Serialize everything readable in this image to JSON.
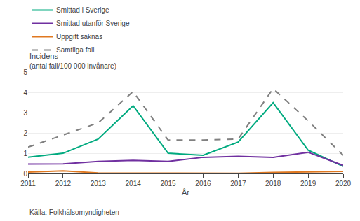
{
  "chart_data": {
    "type": "line",
    "xlabel": "År",
    "ylabel": "Incidens",
    "annotations": [
      "(antal fall/100 000 invånare)",
      "Källa: Folkhälsomyndigheten"
    ],
    "x": [
      2011,
      2012,
      2013,
      2014,
      2015,
      2016,
      2017,
      2018,
      2019,
      2020
    ],
    "series": [
      {
        "name": "Smittad i Sverige",
        "color": "#00aa7f",
        "line_style": "solid",
        "values": [
          0.8,
          1.0,
          1.7,
          3.35,
          1.0,
          0.9,
          1.55,
          3.5,
          1.15,
          0.35
        ]
      },
      {
        "name": "Smittad utanför Sverige",
        "color": "#7030a0",
        "line_style": "solid",
        "values": [
          0.47,
          0.48,
          0.6,
          0.65,
          0.6,
          0.8,
          0.85,
          0.8,
          1.05,
          0.4
        ]
      },
      {
        "name": "Uppgift saknas",
        "color": "#e07820",
        "line_style": "solid",
        "values": [
          0.07,
          0.13,
          0.03,
          0.02,
          0.01,
          0.01,
          0.01,
          0.05,
          0.07,
          0.1
        ]
      },
      {
        "name": "Samtliga fall",
        "color": "#808080",
        "line_style": "dashed",
        "values": [
          1.3,
          1.9,
          2.5,
          4.05,
          1.65,
          1.65,
          1.7,
          4.2,
          2.6,
          0.9
        ]
      }
    ],
    "xlim": [
      2011,
      2020
    ],
    "xticks": [
      2011,
      2012,
      2013,
      2014,
      2015,
      2016,
      2017,
      2018,
      2019,
      2020
    ],
    "ylim": [
      0,
      5
    ],
    "yticks": [
      0,
      1,
      2,
      3,
      4,
      5
    ],
    "grid": true,
    "legend": "top"
  }
}
